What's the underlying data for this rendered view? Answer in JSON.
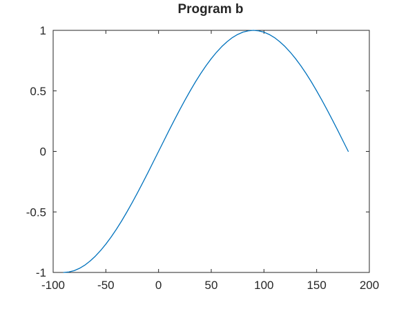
{
  "chart_data": {
    "type": "line",
    "title": "Program b",
    "xlabel": "",
    "ylabel": "",
    "xlim": [
      -100,
      200
    ],
    "ylim": [
      -1,
      1
    ],
    "xticks": [
      -100,
      -50,
      0,
      50,
      100,
      150,
      200
    ],
    "xtick_labels": [
      "-100",
      "-50",
      "0",
      "50",
      "100",
      "150",
      "200"
    ],
    "yticks": [
      -1,
      -0.5,
      0,
      0.5,
      1
    ],
    "ytick_labels": [
      "-1",
      "-0.5",
      "0",
      "0.5",
      "1"
    ],
    "grid": false,
    "colors": {
      "line": "#0072BD",
      "axes": "#262626"
    },
    "series": [
      {
        "x": [
          -90,
          -85,
          -80,
          -75,
          -70,
          -65,
          -60,
          -55,
          -50,
          -45,
          -40,
          -35,
          -30,
          -25,
          -20,
          -15,
          -10,
          -5,
          0,
          5,
          10,
          15,
          20,
          25,
          30,
          35,
          40,
          45,
          50,
          55,
          60,
          65,
          70,
          75,
          80,
          85,
          90,
          95,
          100,
          105,
          110,
          115,
          120,
          125,
          130,
          135,
          140,
          145,
          150,
          155,
          160,
          165,
          170,
          175,
          180
        ],
        "y": [
          -1,
          -0.996,
          -0.985,
          -0.966,
          -0.94,
          -0.906,
          -0.866,
          -0.819,
          -0.766,
          -0.707,
          -0.643,
          -0.574,
          -0.5,
          -0.423,
          -0.342,
          -0.259,
          -0.174,
          -0.087,
          0,
          0.087,
          0.174,
          0.259,
          0.342,
          0.423,
          0.5,
          0.574,
          0.643,
          0.707,
          0.766,
          0.819,
          0.866,
          0.906,
          0.94,
          0.966,
          0.985,
          0.996,
          1,
          0.996,
          0.985,
          0.966,
          0.94,
          0.906,
          0.866,
          0.819,
          0.766,
          0.707,
          0.643,
          0.574,
          0.5,
          0.423,
          0.342,
          0.259,
          0.174,
          0.087,
          0
        ]
      }
    ]
  }
}
